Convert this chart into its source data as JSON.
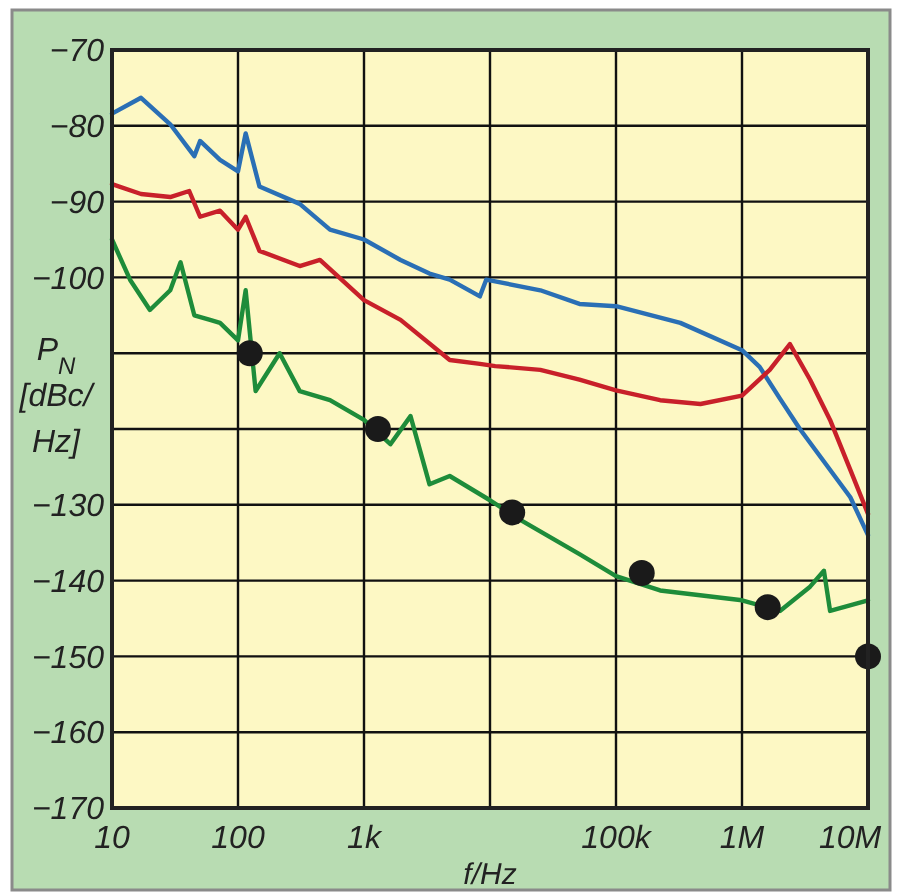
{
  "chart_data": {
    "type": "line",
    "xlabel": "f/Hz",
    "ylabel": "P$_{N}$ [dBc/Hz]",
    "log": "x",
    "grid": true,
    "marker": "none",
    "line_style": "solid",
    "xlim": [
      10,
      10000000
    ],
    "ylim": [
      -170,
      -70
    ],
    "xticks": [
      10,
      100,
      {
        "value": 1000,
        "label": "1k"
      },
      {
        "value": 10000,
        "label": null
      },
      {
        "value": 100000,
        "label": "100k"
      },
      {
        "value": 1000000,
        "label": "1M"
      },
      {
        "value": 10000000,
        "label": "10M"
      }
    ],
    "yticks": [
      -170,
      -160,
      -150,
      -140,
      -130,
      {
        "value": -120,
        "label": null
      },
      {
        "value": -110,
        "label": null
      },
      -100,
      -90,
      -80,
      -70
    ],
    "series": [
      {
        "color": "#2a6fb5",
        "x": [
          10,
          17,
          29,
          45,
          50,
          72,
          100,
          115,
          148,
          309,
          537,
          1000,
          1950,
          3310,
          4790,
          8320,
          9330,
          25100,
          51300,
          100000,
          324000,
          1000000,
          1380000,
          2000000,
          2880000,
          7240000,
          10000000
        ],
        "values": [
          -78.4,
          -76.3,
          -79.8,
          -84,
          -82,
          -84.5,
          -86,
          -81,
          -88,
          -90.3,
          -93.7,
          -95,
          -97.7,
          -99.5,
          -100.3,
          -102.5,
          -100.3,
          -101.7,
          -103.5,
          -103.8,
          -106,
          -109.6,
          -111.8,
          -116,
          -120,
          -129,
          -134
        ]
      },
      {
        "color": "#c8202a",
        "x": [
          10,
          17,
          29,
          41,
          50,
          72,
          100,
          115,
          148,
          309,
          447,
          1000,
          1950,
          4790,
          8320,
          11000,
          25100,
          51300,
          100000,
          224000,
          468000,
          1000000,
          1660000,
          2400000,
          3470000,
          5000000,
          7240000,
          10000000
        ],
        "values": [
          -87.7,
          -89,
          -89.4,
          -88.6,
          -92,
          -91.2,
          -93.7,
          -92,
          -96.5,
          -98.5,
          -97.7,
          -103,
          -105.6,
          -110.9,
          -111.4,
          -111.7,
          -112.2,
          -113.5,
          -114.9,
          -116.2,
          -116.7,
          -115.6,
          -112.2,
          -108.8,
          -113.5,
          -118.8,
          -125.4,
          -131.2
        ]
      },
      {
        "color": "#1e8c3a",
        "x": [
          10,
          13.9,
          20,
          29,
          35,
          45,
          60,
          72,
          100,
          115,
          138,
          214,
          309,
          537,
          1000,
          1620,
          2340,
          3310,
          4790,
          10000,
          17400,
          51300,
          100000,
          224000,
          1000000,
          2000000,
          3470000,
          4470000,
          5000000,
          10000000
        ],
        "values": [
          -95,
          -100.3,
          -104.3,
          -101.7,
          -98,
          -105,
          -105.6,
          -106,
          -108.3,
          -101.7,
          -115,
          -110,
          -115,
          -116.2,
          -118.8,
          -122,
          -118.3,
          -127.3,
          -126.2,
          -129.4,
          -132,
          -136.5,
          -139.4,
          -141.3,
          -142.6,
          -144,
          -140.8,
          -138.7,
          -144,
          -142.6
        ]
      },
      {
        "type": "scatter",
        "marker": "circle",
        "color": "#1a1a1a",
        "x": [
          124,
          1290,
          15000,
          160000,
          1600000,
          10000000
        ],
        "values": [
          -110,
          -120,
          -131,
          -139,
          -143.5,
          -150
        ]
      }
    ]
  }
}
